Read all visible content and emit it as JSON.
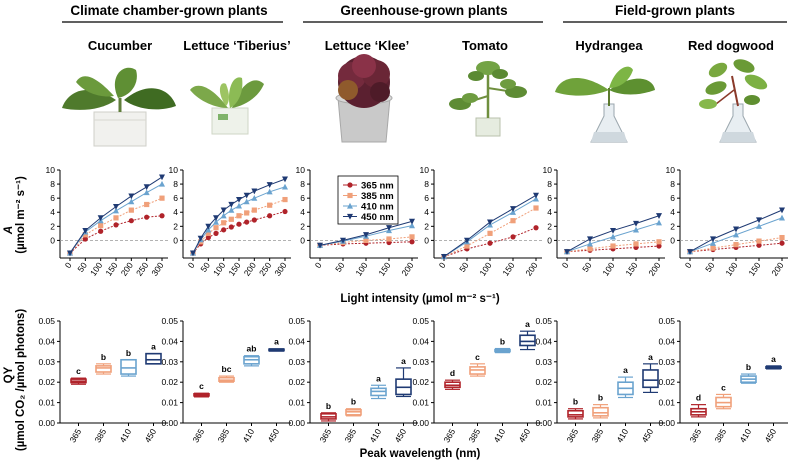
{
  "header": {
    "groups": [
      {
        "label": "Climate chamber-grown plants"
      },
      {
        "label": "Greenhouse-grown plants"
      },
      {
        "label": "Field-grown plants"
      }
    ],
    "plants": [
      "Cucumber",
      "Lettuce ‘Tiberius’",
      "Lettuce ‘Klee’",
      "Tomato",
      "Hydrangea",
      "Red dogwood"
    ]
  },
  "axes": {
    "top_ylabel_sym": "A",
    "top_ylabel_units": "(µmol m⁻² s⁻¹)",
    "top_xlabel": "Light intensity  (µmol m⁻² s⁻¹)",
    "bottom_ylabel_sym": "QY",
    "bottom_ylabel_units": "(µmol CO₂ /µmol photons)",
    "bottom_xlabel": "Peak wavelength (nm)"
  },
  "legend": [
    "365 nm",
    "385 nm",
    "410 nm",
    "450 nm"
  ],
  "colors": {
    "365": "#b0232a",
    "385": "#f0a07a",
    "410": "#6aa3cf",
    "450": "#1f3a73",
    "zero_line": "#999999"
  },
  "chart_data": [
    {
      "type": "line",
      "panel": "Cucumber",
      "x": [
        0,
        50,
        100,
        150,
        200,
        250,
        300
      ],
      "xticks": [
        "0",
        "50",
        "100",
        "150",
        "200",
        "250",
        "300"
      ],
      "ylim": [
        -2.5,
        10
      ],
      "yticks": [
        "0",
        "2",
        "4",
        "6",
        "8",
        "10"
      ],
      "series": [
        {
          "name": "365 nm",
          "values": [
            -1.8,
            0.2,
            1.3,
            2.2,
            2.8,
            3.3,
            3.5
          ]
        },
        {
          "name": "385 nm",
          "values": [
            -1.8,
            0.8,
            2.1,
            3.2,
            4.3,
            5.1,
            6.0
          ]
        },
        {
          "name": "410 nm",
          "values": [
            -1.8,
            1.2,
            2.8,
            4.2,
            5.5,
            6.8,
            8.0
          ]
        },
        {
          "name": "450 nm",
          "values": [
            -1.8,
            1.4,
            3.2,
            4.8,
            6.3,
            7.6,
            9.0
          ]
        }
      ]
    },
    {
      "type": "line",
      "panel": "Lettuce ‘Tiberius’",
      "x": [
        0,
        25,
        50,
        75,
        100,
        125,
        150,
        175,
        200,
        250,
        300
      ],
      "xticks": [
        "0",
        "50",
        "100",
        "150",
        "200",
        "250",
        "300"
      ],
      "ylim": [
        -2.5,
        10
      ],
      "yticks": [
        "0",
        "2",
        "4",
        "6",
        "8",
        "10"
      ],
      "series": [
        {
          "name": "365 nm",
          "values": [
            -1.8,
            -0.5,
            0.4,
            1.0,
            1.5,
            1.9,
            2.3,
            2.6,
            2.9,
            3.5,
            4.1
          ]
        },
        {
          "name": "385 nm",
          "values": [
            -1.8,
            -0.2,
            1.0,
            1.8,
            2.5,
            3.0,
            3.5,
            3.9,
            4.3,
            5.0,
            5.8
          ]
        },
        {
          "name": "410 nm",
          "values": [
            -1.8,
            0.1,
            1.5,
            2.6,
            3.5,
            4.3,
            4.9,
            5.5,
            6.0,
            6.9,
            7.6
          ]
        },
        {
          "name": "450 nm",
          "values": [
            -1.8,
            0.3,
            2.0,
            3.2,
            4.3,
            5.1,
            5.8,
            6.4,
            7.0,
            7.9,
            8.7
          ]
        }
      ]
    },
    {
      "type": "line",
      "panel": "Lettuce ‘Klee’",
      "x": [
        0,
        50,
        100,
        150,
        200
      ],
      "xticks": [
        "0",
        "50",
        "100",
        "150",
        "200"
      ],
      "ylim": [
        -2.5,
        10
      ],
      "yticks": [
        "0",
        "2",
        "4",
        "6",
        "8",
        "10"
      ],
      "series": [
        {
          "name": "365 nm",
          "values": [
            -0.7,
            -0.5,
            -0.4,
            -0.3,
            -0.2
          ]
        },
        {
          "name": "385 nm",
          "values": [
            -0.7,
            -0.3,
            0.0,
            0.2,
            0.5
          ]
        },
        {
          "name": "410 nm",
          "values": [
            -0.7,
            -0.1,
            0.6,
            1.4,
            2.1
          ]
        },
        {
          "name": "450 nm",
          "values": [
            -0.7,
            0.0,
            0.8,
            1.8,
            2.7
          ]
        }
      ]
    },
    {
      "type": "line",
      "panel": "Tomato",
      "x": [
        0,
        50,
        100,
        150,
        200
      ],
      "xticks": [
        "0",
        "50",
        "100",
        "150",
        "200"
      ],
      "ylim": [
        -2.5,
        10
      ],
      "yticks": [
        "0",
        "2",
        "4",
        "6",
        "8",
        "10"
      ],
      "series": [
        {
          "name": "365 nm",
          "values": [
            -2.3,
            -1.2,
            -0.4,
            0.5,
            1.8
          ]
        },
        {
          "name": "385 nm",
          "values": [
            -2.3,
            -0.8,
            1.0,
            2.8,
            4.6
          ]
        },
        {
          "name": "410 nm",
          "values": [
            -2.3,
            -0.2,
            2.2,
            4.0,
            5.9
          ]
        },
        {
          "name": "450 nm",
          "values": [
            -2.3,
            0.0,
            2.6,
            4.5,
            6.4
          ]
        }
      ]
    },
    {
      "type": "line",
      "panel": "Hydrangea",
      "x": [
        0,
        50,
        100,
        150,
        200
      ],
      "xticks": [
        "0",
        "50",
        "100",
        "150",
        "200"
      ],
      "ylim": [
        -2.5,
        10
      ],
      "yticks": [
        "0",
        "2",
        "4",
        "6",
        "8",
        "10"
      ],
      "series": [
        {
          "name": "365 nm",
          "values": [
            -1.6,
            -1.4,
            -1.2,
            -1.0,
            -0.8
          ]
        },
        {
          "name": "385 nm",
          "values": [
            -1.6,
            -1.2,
            -0.8,
            -0.5,
            -0.2
          ]
        },
        {
          "name": "410 nm",
          "values": [
            -1.6,
            -0.5,
            0.5,
            1.5,
            2.5
          ]
        },
        {
          "name": "450 nm",
          "values": [
            -1.6,
            0.2,
            1.4,
            2.4,
            3.5
          ]
        }
      ]
    },
    {
      "type": "line",
      "panel": "Red dogwood",
      "x": [
        0,
        50,
        100,
        150,
        200
      ],
      "xticks": [
        "0",
        "50",
        "100",
        "150",
        "200"
      ],
      "ylim": [
        -2.5,
        10
      ],
      "yticks": [
        "0",
        "2",
        "4",
        "6",
        "8",
        "10"
      ],
      "series": [
        {
          "name": "365 nm",
          "values": [
            -1.6,
            -1.3,
            -1.0,
            -0.7,
            -0.4
          ]
        },
        {
          "name": "385 nm",
          "values": [
            -1.6,
            -1.1,
            -0.6,
            -0.1,
            0.4
          ]
        },
        {
          "name": "410 nm",
          "values": [
            -1.6,
            -0.4,
            0.8,
            2.0,
            3.2
          ]
        },
        {
          "name": "450 nm",
          "values": [
            -1.6,
            0.2,
            1.6,
            2.9,
            4.3
          ]
        }
      ]
    },
    {
      "type": "box",
      "panel": "Cucumber",
      "categories": [
        "365",
        "385",
        "410",
        "450"
      ],
      "ylim": [
        0,
        0.05
      ],
      "yticks": [
        "0.00",
        "0.01",
        "0.02",
        "0.03",
        "0.04",
        "0.05"
      ],
      "boxes": [
        {
          "min": 0.019,
          "q1": 0.0198,
          "median": 0.0205,
          "q3": 0.0215,
          "max": 0.022,
          "letter": "c"
        },
        {
          "min": 0.024,
          "q1": 0.025,
          "median": 0.027,
          "q3": 0.028,
          "max": 0.029,
          "letter": "b"
        },
        {
          "min": 0.023,
          "q1": 0.024,
          "median": 0.027,
          "q3": 0.031,
          "max": 0.031,
          "letter": "b"
        },
        {
          "min": 0.029,
          "q1": 0.029,
          "median": 0.031,
          "q3": 0.034,
          "max": 0.034,
          "letter": "a"
        }
      ]
    },
    {
      "type": "box",
      "panel": "Lettuce ‘Tiberius’",
      "categories": [
        "365",
        "385",
        "410",
        "450"
      ],
      "ylim": [
        0,
        0.05
      ],
      "yticks": [
        "0.00",
        "0.01",
        "0.02",
        "0.03",
        "0.04",
        "0.05"
      ],
      "boxes": [
        {
          "min": 0.0128,
          "q1": 0.0133,
          "median": 0.0138,
          "q3": 0.0143,
          "max": 0.0146,
          "letter": "c"
        },
        {
          "min": 0.02,
          "q1": 0.0205,
          "median": 0.021,
          "q3": 0.0222,
          "max": 0.023,
          "letter": "bc"
        },
        {
          "min": 0.028,
          "q1": 0.029,
          "median": 0.031,
          "q3": 0.0325,
          "max": 0.033,
          "letter": "ab"
        },
        {
          "min": 0.0352,
          "q1": 0.0355,
          "median": 0.0358,
          "q3": 0.0362,
          "max": 0.0364,
          "letter": "a"
        }
      ]
    },
    {
      "type": "box",
      "panel": "Lettuce ‘Klee’",
      "categories": [
        "365",
        "385",
        "410",
        "450"
      ],
      "ylim": [
        0,
        0.05
      ],
      "yticks": [
        "0.00",
        "0.01",
        "0.02",
        "0.03",
        "0.04",
        "0.05"
      ],
      "boxes": [
        {
          "min": 0.001,
          "q1": 0.002,
          "median": 0.003,
          "q3": 0.0045,
          "max": 0.005,
          "letter": "b"
        },
        {
          "min": 0.0035,
          "q1": 0.004,
          "median": 0.0055,
          "q3": 0.0065,
          "max": 0.007,
          "letter": "b"
        },
        {
          "min": 0.012,
          "q1": 0.0135,
          "median": 0.0155,
          "q3": 0.017,
          "max": 0.0185,
          "letter": "a"
        },
        {
          "min": 0.013,
          "q1": 0.014,
          "median": 0.0175,
          "q3": 0.0215,
          "max": 0.027,
          "letter": "a"
        }
      ]
    },
    {
      "type": "box",
      "panel": "Tomato",
      "categories": [
        "365",
        "385",
        "410",
        "450"
      ],
      "ylim": [
        0,
        0.05
      ],
      "yticks": [
        "0.00",
        "0.01",
        "0.02",
        "0.03",
        "0.04",
        "0.05"
      ],
      "boxes": [
        {
          "min": 0.0165,
          "q1": 0.0175,
          "median": 0.0185,
          "q3": 0.02,
          "max": 0.021,
          "letter": "d"
        },
        {
          "min": 0.023,
          "q1": 0.024,
          "median": 0.026,
          "q3": 0.0275,
          "max": 0.029,
          "letter": "c"
        },
        {
          "min": 0.0345,
          "q1": 0.035,
          "median": 0.0355,
          "q3": 0.036,
          "max": 0.0365,
          "letter": "b"
        },
        {
          "min": 0.036,
          "q1": 0.038,
          "median": 0.04,
          "q3": 0.043,
          "max": 0.045,
          "letter": "a"
        }
      ]
    },
    {
      "type": "box",
      "panel": "Hydrangea",
      "categories": [
        "365",
        "385",
        "410",
        "450"
      ],
      "ylim": [
        0,
        0.05
      ],
      "yticks": [
        "0.00",
        "0.01",
        "0.02",
        "0.03",
        "0.04",
        "0.05"
      ],
      "boxes": [
        {
          "min": 0.002,
          "q1": 0.003,
          "median": 0.004,
          "q3": 0.006,
          "max": 0.007,
          "letter": "b"
        },
        {
          "min": 0.0025,
          "q1": 0.0035,
          "median": 0.005,
          "q3": 0.0075,
          "max": 0.009,
          "letter": "b"
        },
        {
          "min": 0.0125,
          "q1": 0.014,
          "median": 0.017,
          "q3": 0.02,
          "max": 0.0225,
          "letter": "a"
        },
        {
          "min": 0.015,
          "q1": 0.0175,
          "median": 0.021,
          "q3": 0.026,
          "max": 0.029,
          "letter": "a"
        }
      ]
    },
    {
      "type": "box",
      "panel": "Red dogwood",
      "categories": [
        "365",
        "385",
        "410",
        "450"
      ],
      "ylim": [
        0,
        0.05
      ],
      "yticks": [
        "0.00",
        "0.01",
        "0.02",
        "0.03",
        "0.04",
        "0.05"
      ],
      "boxes": [
        {
          "min": 0.003,
          "q1": 0.004,
          "median": 0.0055,
          "q3": 0.007,
          "max": 0.009,
          "letter": "d"
        },
        {
          "min": 0.007,
          "q1": 0.008,
          "median": 0.01,
          "q3": 0.0125,
          "max": 0.014,
          "letter": "c"
        },
        {
          "min": 0.0195,
          "q1": 0.02,
          "median": 0.0215,
          "q3": 0.023,
          "max": 0.024,
          "letter": "b"
        },
        {
          "min": 0.0265,
          "q1": 0.027,
          "median": 0.0272,
          "q3": 0.0276,
          "max": 0.028,
          "letter": "a"
        }
      ]
    }
  ]
}
